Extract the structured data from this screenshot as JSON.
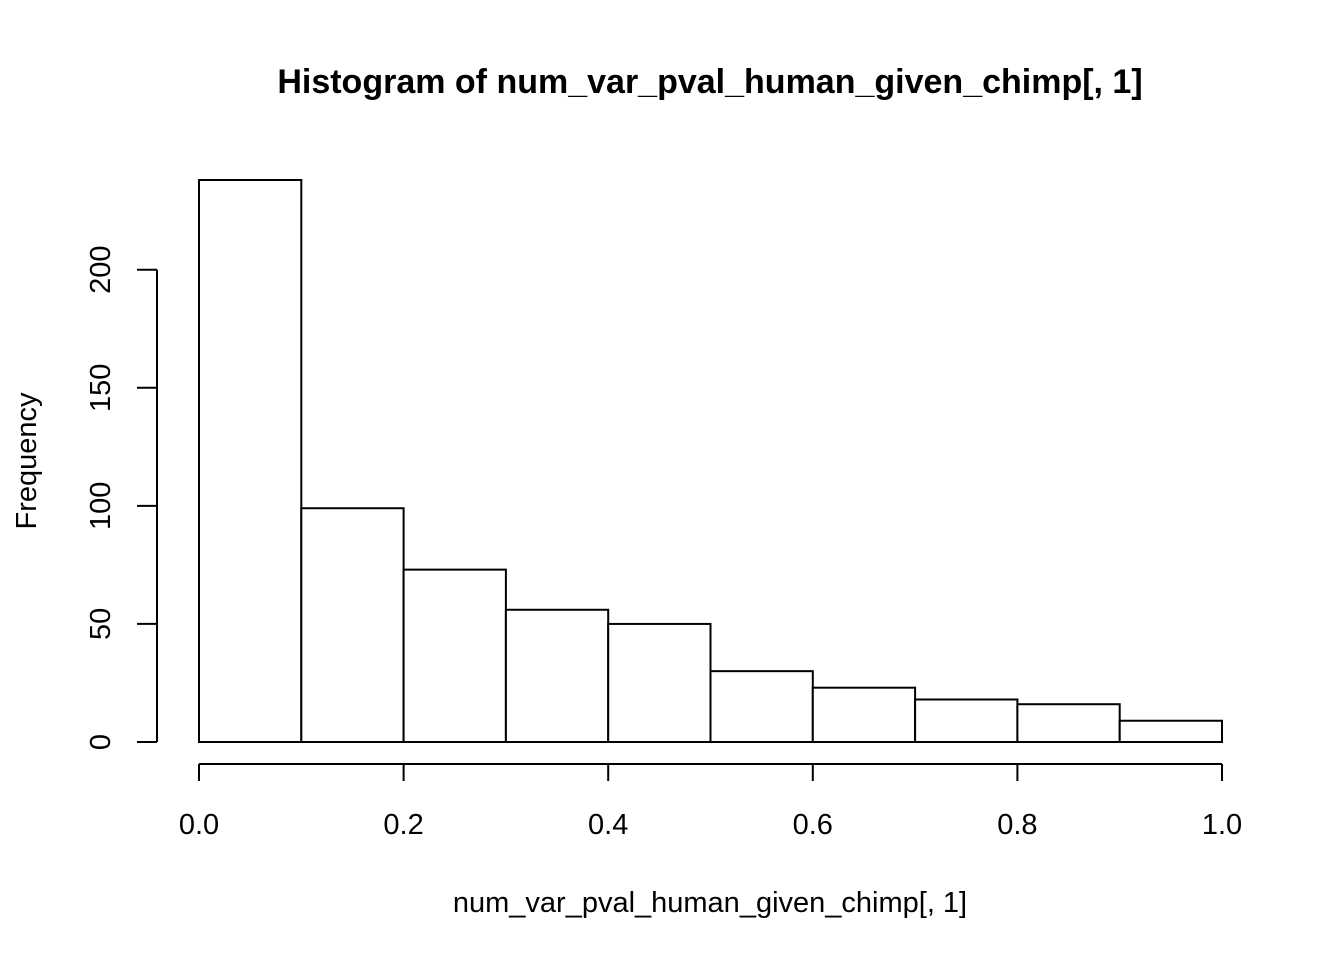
{
  "chart_data": {
    "type": "bar",
    "title": "Histogram of num_var_pval_human_given_chimp[, 1]",
    "xlabel": "num_var_pval_human_given_chimp[, 1]",
    "ylabel": "Frequency",
    "bins": [
      {
        "x0": 0.0,
        "x1": 0.1,
        "count": 238
      },
      {
        "x0": 0.1,
        "x1": 0.2,
        "count": 99
      },
      {
        "x0": 0.2,
        "x1": 0.3,
        "count": 73
      },
      {
        "x0": 0.3,
        "x1": 0.4,
        "count": 56
      },
      {
        "x0": 0.4,
        "x1": 0.5,
        "count": 50
      },
      {
        "x0": 0.5,
        "x1": 0.6,
        "count": 30
      },
      {
        "x0": 0.6,
        "x1": 0.7,
        "count": 23
      },
      {
        "x0": 0.7,
        "x1": 0.8,
        "count": 18
      },
      {
        "x0": 0.8,
        "x1": 0.9,
        "count": 16
      },
      {
        "x0": 0.9,
        "x1": 1.0,
        "count": 9
      }
    ],
    "xlim": [
      0.0,
      1.0
    ],
    "ylim": [
      0,
      238
    ],
    "x_ticks": [
      0.0,
      0.2,
      0.4,
      0.6,
      0.8,
      1.0
    ],
    "x_tick_labels": [
      "0.0",
      "0.2",
      "0.4",
      "0.6",
      "0.8",
      "1.0"
    ],
    "y_ticks": [
      0,
      50,
      100,
      150,
      200
    ],
    "y_tick_labels": [
      "0",
      "50",
      "100",
      "150",
      "200"
    ],
    "grid": false,
    "legend": "none",
    "colors": {
      "bar_fill": "#ffffff",
      "bar_stroke": "#000000",
      "text": "#000000"
    }
  }
}
